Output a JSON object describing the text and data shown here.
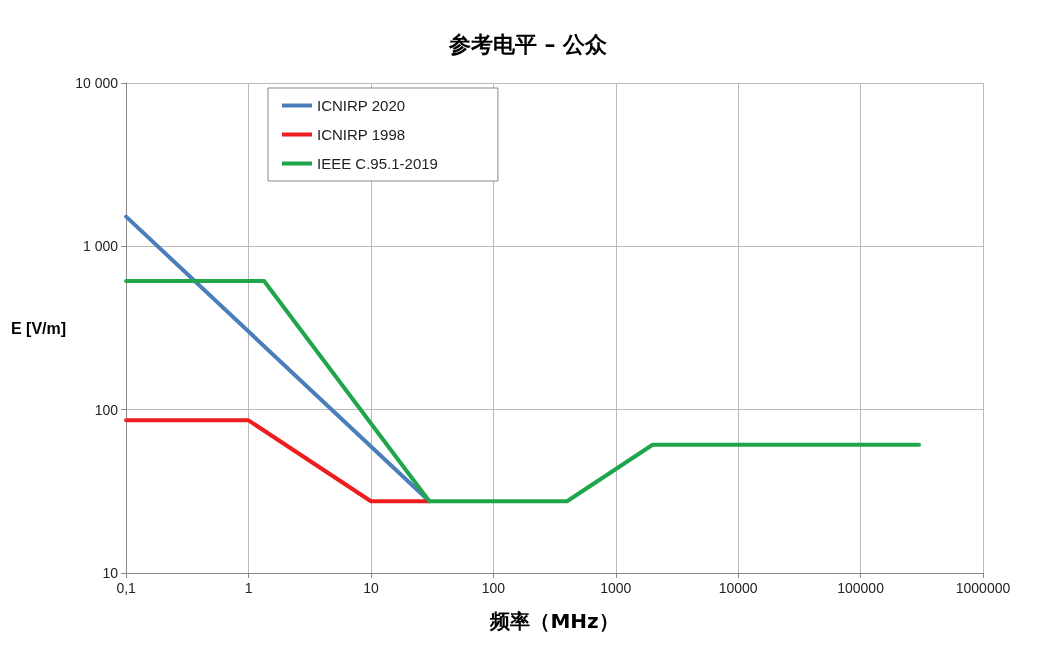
{
  "chart_data": {
    "type": "line",
    "title": "参考电平 – 公众",
    "xlabel": "频率（MHz）",
    "ylabel": "E [V/m]",
    "log": "xy",
    "grid": true,
    "legend": "top left",
    "marker": "none",
    "line_style": "solid",
    "xlim": [
      0.1,
      1000000
    ],
    "xticks": [
      {
        "value": 0.1,
        "label": "0,1"
      },
      1,
      10,
      100,
      1000,
      10000,
      100000,
      1000000
    ],
    "ylim": [
      10,
      10000
    ],
    "yticks": [
      10,
      100,
      {
        "value": 1000,
        "label": "1 000"
      },
      {
        "value": 10000,
        "label": "10 000"
      }
    ],
    "series": [
      {
        "name": "ICNIRP 2020",
        "color": "#4a7ebb",
        "x": [
          0.1,
          30
        ],
        "values": [
          1520,
          27.5
        ]
      },
      {
        "name": "ICNIRP 1998",
        "color": "#ee1c1c",
        "x": [
          0.1,
          1,
          10,
          30
        ],
        "values": [
          86,
          86,
          27.5,
          27.5
        ]
      },
      {
        "name": "IEEE C.95.1-2019",
        "color": "#1fa64a",
        "x": [
          0.1,
          1.34,
          30,
          400,
          2000,
          300000
        ],
        "values": [
          614,
          614,
          27.5,
          27.5,
          61,
          61
        ]
      }
    ]
  }
}
